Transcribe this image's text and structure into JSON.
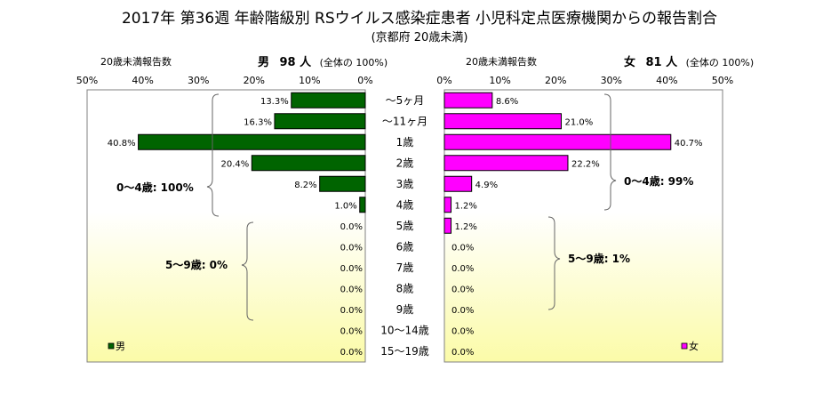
{
  "header": {
    "title": "2017年 第36週 年齢階級別 RSウイルス感染症患者 小児科定点医療機関からの報告割合",
    "subtitle": "(京都府 20歳未満)"
  },
  "male_panel": {
    "axis_caption": "20歳未満報告数",
    "gender_label": "男",
    "count_label": "98 人",
    "total_note": "(全体の 100%)",
    "legend_label": "男",
    "bracket_labels": [
      "0～4歳: 100%",
      "5～9歳: 0%"
    ]
  },
  "female_panel": {
    "axis_caption": "20歳未満報告数",
    "gender_label": "女",
    "count_label": "81 人",
    "total_note": "(全体の 100%)",
    "legend_label": "女",
    "bracket_labels": [
      "0～4歳: 99%",
      "5～9歳: 1%"
    ]
  },
  "chart_data": {
    "type": "bar",
    "orientation": "horizontal-butterfly",
    "categories": [
      "～5ヶ月",
      "～11ヶ月",
      "1歳",
      "2歳",
      "3歳",
      "4歳",
      "5歳",
      "6歳",
      "7歳",
      "8歳",
      "9歳",
      "10～14歳",
      "15～19歳"
    ],
    "series": [
      {
        "name": "男",
        "values": [
          13.3,
          16.3,
          40.8,
          20.4,
          8.2,
          1.0,
          0.0,
          0.0,
          0.0,
          0.0,
          0.0,
          0.0,
          0.0
        ],
        "labels": [
          "13.3%",
          "16.3%",
          "40.8%",
          "20.4%",
          "8.2%",
          "1.0%",
          "0.0%",
          "0.0%",
          "0.0%",
          "0.0%",
          "0.0%",
          "0.0%",
          "0.0%"
        ],
        "color": "#006400"
      },
      {
        "name": "女",
        "values": [
          8.6,
          21.0,
          40.7,
          22.2,
          4.9,
          1.2,
          1.2,
          0.0,
          0.0,
          0.0,
          0.0,
          0.0,
          0.0
        ],
        "labels": [
          "8.6%",
          "21.0%",
          "40.7%",
          "22.2%",
          "4.9%",
          "1.2%",
          "1.2%",
          "0.0%",
          "0.0%",
          "0.0%",
          "0.0%",
          "0.0%",
          "0.0%"
        ],
        "color": "#FF00FF"
      }
    ],
    "xlim": [
      0,
      50
    ],
    "tick_labels": [
      "0%",
      "10%",
      "20%",
      "30%",
      "40%",
      "50%"
    ]
  }
}
